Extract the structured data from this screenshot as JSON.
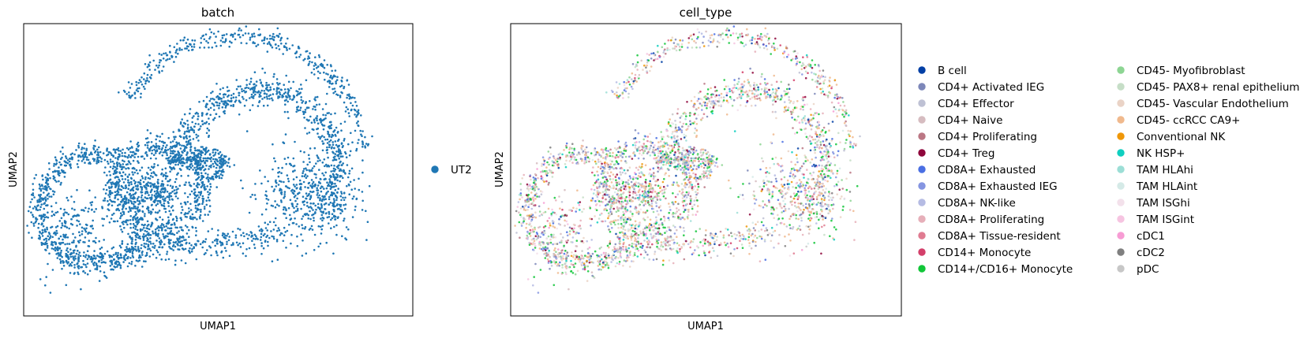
{
  "chart_data": [
    {
      "type": "scatter",
      "title": "batch",
      "xlabel": "UMAP1",
      "ylabel": "UMAP2",
      "xticks": "none",
      "yticks": "none",
      "grid": false,
      "legend_placement": "right",
      "series": [
        {
          "name": "UT2",
          "color": "#1f77b4"
        }
      ]
    },
    {
      "type": "scatter",
      "title": "cell_type",
      "xlabel": "UMAP1",
      "ylabel": "UMAP2",
      "xticks": "none",
      "yticks": "none",
      "grid": false,
      "legend_placement": "right",
      "legend_columns": 2,
      "series": [
        {
          "name": "B cell",
          "color": "#023fa5"
        },
        {
          "name": "CD4+ Activated IEG",
          "color": "#7d87b9"
        },
        {
          "name": "CD4+ Effector",
          "color": "#bec1d4"
        },
        {
          "name": "CD4+ Naive",
          "color": "#d6bcc0"
        },
        {
          "name": "CD4+ Proliferating",
          "color": "#bb7784"
        },
        {
          "name": "CD4+ Treg",
          "color": "#8e063b"
        },
        {
          "name": "CD8A+ Exhausted",
          "color": "#4a6fe3"
        },
        {
          "name": "CD8A+ Exhausted IEG",
          "color": "#8595e1"
        },
        {
          "name": "CD8A+ NK-like",
          "color": "#b5bbe3"
        },
        {
          "name": "CD8A+ Proliferating",
          "color": "#e6afb9"
        },
        {
          "name": "CD8A+ Tissue-resident",
          "color": "#e07b91"
        },
        {
          "name": "CD14+ Monocyte",
          "color": "#d33f6a"
        },
        {
          "name": "CD14+/CD16+ Monocyte",
          "color": "#11c638"
        },
        {
          "name": "CD45- Myofibroblast",
          "color": "#8dd593"
        },
        {
          "name": "CD45- PAX8+ renal epithelium",
          "color": "#c6dec7"
        },
        {
          "name": "CD45- Vascular Endothelium",
          "color": "#ead3c6"
        },
        {
          "name": "CD45- ccRCC CA9+",
          "color": "#f0b98d"
        },
        {
          "name": "Conventional NK",
          "color": "#ef9708"
        },
        {
          "name": "NK HSP+",
          "color": "#0fcfc0"
        },
        {
          "name": "TAM HLAhi",
          "color": "#9cded6"
        },
        {
          "name": "TAM HLAint",
          "color": "#d5eae7"
        },
        {
          "name": "TAM ISGhi",
          "color": "#f3e1eb"
        },
        {
          "name": "TAM ISGint",
          "color": "#f6c4e1"
        },
        {
          "name": "cDC1",
          "color": "#f79cd4"
        },
        {
          "name": "cDC2",
          "color": "#7f7f7f"
        },
        {
          "name": "pDC",
          "color": "#c7c7c7"
        }
      ]
    }
  ]
}
